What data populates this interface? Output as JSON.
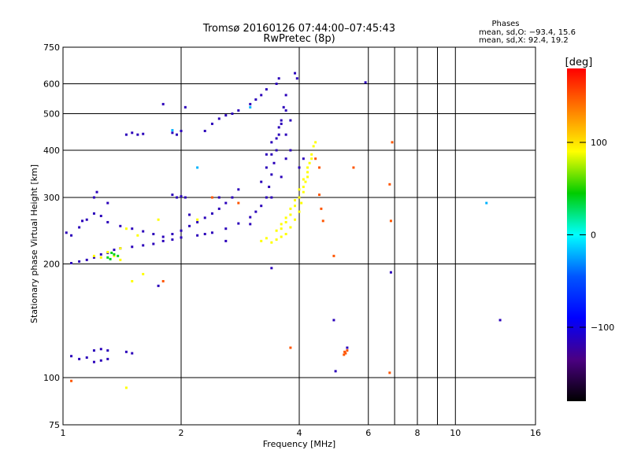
{
  "chart_data": {
    "type": "scatter",
    "title": "Tromsø 20160126 07:44:00–07:45:43",
    "subtitle": "RwPretec (8p)",
    "phase_info": {
      "heading": "Phases",
      "line_o": "mean, sd,O: −93.4, 15.6",
      "line_x": "mean, sd,X:  92.4, 19.2"
    },
    "xlabel": "Frequency [MHz]",
    "ylabel": "Stationary phase Virtual Height [km]",
    "x_scale": "log",
    "y_scale": "log",
    "xlim": [
      1,
      16
    ],
    "ylim": [
      75,
      750
    ],
    "x_ticks": [
      1,
      2,
      4,
      6,
      8,
      10,
      16
    ],
    "x_tick_labels": [
      "1",
      "2",
      "4",
      "6",
      "8",
      "10",
      "16"
    ],
    "x_gridlines": [
      1,
      2,
      4,
      6,
      7,
      8,
      9,
      10,
      16
    ],
    "y_ticks": [
      75,
      100,
      200,
      300,
      400,
      500,
      600,
      750
    ],
    "y_tick_labels": [
      "75",
      "100",
      "200",
      "300",
      "400",
      "500",
      "600",
      "750"
    ],
    "grid": true,
    "colorbar": {
      "label": "[deg]",
      "range": [
        -180,
        180
      ],
      "ticks": [
        100,
        0,
        -100
      ],
      "tick_labels": [
        "100",
        "0",
        "−100"
      ],
      "colors": [
        "#ff0000",
        "#ff7f00",
        "#ffff00",
        "#00cc00",
        "#00ffff",
        "#0055ff",
        "#0000ff",
        "#4b0082",
        "#000000"
      ]
    },
    "series": [
      {
        "phase_deg": -115,
        "points": [
          [
            1.05,
            201
          ],
          [
            1.1,
            203
          ],
          [
            1.15,
            205
          ],
          [
            1.2,
            208
          ],
          [
            1.25,
            212
          ],
          [
            1.3,
            214
          ],
          [
            1.35,
            218
          ],
          [
            1.4,
            220
          ],
          [
            1.5,
            222
          ],
          [
            1.6,
            224
          ],
          [
            1.7,
            226
          ],
          [
            1.8,
            230
          ],
          [
            1.9,
            232
          ],
          [
            2.0,
            235
          ],
          [
            2.2,
            238
          ],
          [
            2.4,
            242
          ],
          [
            2.6,
            248
          ],
          [
            2.8,
            256
          ],
          [
            3.0,
            266
          ],
          [
            3.1,
            275
          ],
          [
            3.2,
            285
          ],
          [
            3.3,
            300
          ],
          [
            3.35,
            320
          ],
          [
            3.4,
            345
          ],
          [
            3.45,
            370
          ],
          [
            3.5,
            400
          ],
          [
            3.55,
            440
          ],
          [
            3.6,
            480
          ],
          [
            3.65,
            520
          ],
          [
            3.7,
            560
          ],
          [
            1.1,
            250
          ],
          [
            1.15,
            262
          ],
          [
            1.2,
            272
          ],
          [
            1.25,
            268
          ],
          [
            1.3,
            258
          ],
          [
            1.4,
            252
          ],
          [
            1.5,
            248
          ],
          [
            1.6,
            244
          ],
          [
            1.7,
            240
          ],
          [
            1.8,
            236
          ],
          [
            1.9,
            240
          ],
          [
            2.0,
            245
          ],
          [
            2.1,
            252
          ],
          [
            2.2,
            258
          ],
          [
            2.3,
            265
          ],
          [
            2.4,
            272
          ],
          [
            2.5,
            280
          ],
          [
            2.6,
            290
          ],
          [
            2.7,
            300
          ],
          [
            2.8,
            315
          ],
          [
            1.05,
            114
          ],
          [
            1.1,
            112
          ],
          [
            1.15,
            113
          ],
          [
            1.2,
            110
          ],
          [
            1.25,
            111
          ],
          [
            1.3,
            112
          ],
          [
            1.2,
            118
          ],
          [
            1.25,
            119
          ],
          [
            1.3,
            118
          ],
          [
            1.45,
            117
          ],
          [
            1.5,
            116
          ],
          [
            1.45,
            440
          ],
          [
            1.5,
            445
          ],
          [
            1.55,
            440
          ],
          [
            1.6,
            442
          ],
          [
            1.9,
            445
          ],
          [
            1.95,
            440
          ],
          [
            2.0,
            450
          ],
          [
            1.9,
            305
          ],
          [
            1.95,
            300
          ],
          [
            2.0,
            302
          ],
          [
            2.05,
            300
          ],
          [
            2.3,
            450
          ],
          [
            2.4,
            470
          ],
          [
            2.5,
            485
          ],
          [
            2.6,
            495
          ],
          [
            2.7,
            500
          ],
          [
            2.8,
            510
          ],
          [
            3.0,
            530
          ],
          [
            3.1,
            545
          ],
          [
            3.2,
            560
          ],
          [
            3.3,
            580
          ],
          [
            3.5,
            600
          ],
          [
            3.55,
            620
          ],
          [
            3.9,
            640
          ],
          [
            3.95,
            620
          ],
          [
            3.2,
            330
          ],
          [
            3.3,
            360
          ],
          [
            3.4,
            390
          ],
          [
            3.5,
            430
          ],
          [
            3.6,
            470
          ],
          [
            3.7,
            510
          ],
          [
            3.3,
            390
          ],
          [
            3.4,
            420
          ],
          [
            3.55,
            460
          ],
          [
            3.7,
            440
          ],
          [
            3.8,
            480
          ],
          [
            1.02,
            242
          ],
          [
            1.05,
            238
          ],
          [
            1.12,
            260
          ],
          [
            1.3,
            290
          ],
          [
            1.2,
            300
          ],
          [
            1.22,
            310
          ],
          [
            2.1,
            270
          ],
          [
            2.3,
            240
          ],
          [
            2.6,
            230
          ],
          [
            3.0,
            255
          ],
          [
            3.4,
            300
          ],
          [
            3.6,
            340
          ],
          [
            3.7,
            380
          ],
          [
            3.8,
            400
          ],
          [
            4.0,
            360
          ],
          [
            4.1,
            380
          ],
          [
            2.05,
            520
          ],
          [
            1.8,
            530
          ],
          [
            2.5,
            300
          ],
          [
            1.75,
            175
          ],
          [
            3.4,
            195
          ],
          [
            6.85,
            190
          ],
          [
            4.9,
            142
          ],
          [
            5.3,
            120
          ],
          [
            4.95,
            104
          ],
          [
            13.0,
            142
          ],
          [
            5.9,
            605
          ]
        ]
      },
      {
        "phase_deg": 90,
        "points": [
          [
            3.4,
            228
          ],
          [
            3.5,
            232
          ],
          [
            3.6,
            236
          ],
          [
            3.7,
            240
          ],
          [
            3.8,
            250
          ],
          [
            3.9,
            262
          ],
          [
            4.0,
            275
          ],
          [
            4.05,
            290
          ],
          [
            4.1,
            310
          ],
          [
            4.15,
            330
          ],
          [
            4.2,
            350
          ],
          [
            4.25,
            370
          ],
          [
            4.3,
            390
          ],
          [
            4.35,
            410
          ],
          [
            4.4,
            420
          ],
          [
            3.2,
            230
          ],
          [
            3.3,
            234
          ],
          [
            3.6,
            248
          ],
          [
            3.7,
            258
          ],
          [
            3.8,
            270
          ],
          [
            3.9,
            285
          ],
          [
            4.0,
            300
          ],
          [
            4.1,
            320
          ],
          [
            4.2,
            340
          ],
          [
            3.5,
            245
          ],
          [
            3.6,
            255
          ],
          [
            3.7,
            265
          ],
          [
            3.8,
            280
          ],
          [
            3.9,
            295
          ],
          [
            4.0,
            315
          ],
          [
            4.1,
            335
          ],
          [
            4.2,
            360
          ],
          [
            4.3,
            380
          ],
          [
            1.3,
            215
          ],
          [
            1.35,
            210
          ],
          [
            1.4,
            220
          ],
          [
            1.45,
            248
          ],
          [
            1.55,
            238
          ],
          [
            1.75,
            262
          ],
          [
            2.2,
            262
          ],
          [
            1.4,
            205
          ],
          [
            1.2,
            210
          ],
          [
            1.25,
            208
          ],
          [
            1.5,
            180
          ],
          [
            1.6,
            188
          ],
          [
            1.45,
            94
          ]
        ]
      },
      {
        "phase_deg": 150,
        "points": [
          [
            4.5,
            305
          ],
          [
            4.55,
            280
          ],
          [
            4.6,
            260
          ],
          [
            4.4,
            380
          ],
          [
            4.5,
            360
          ],
          [
            1.05,
            98
          ],
          [
            3.8,
            120
          ],
          [
            5.3,
            118
          ],
          [
            5.25,
            116
          ],
          [
            5.2,
            115
          ],
          [
            5.22,
            117
          ],
          [
            6.8,
            103
          ],
          [
            6.85,
            260
          ],
          [
            6.8,
            325
          ],
          [
            6.9,
            420
          ],
          [
            4.9,
            210
          ],
          [
            5.5,
            360
          ],
          [
            1.8,
            180
          ],
          [
            2.4,
            300
          ],
          [
            2.8,
            290
          ]
        ]
      },
      {
        "phase_deg": 40,
        "points": [
          [
            1.3,
            208
          ],
          [
            1.32,
            206
          ],
          [
            1.35,
            212
          ],
          [
            1.38,
            210
          ],
          [
            1.33,
            214
          ]
        ]
      },
      {
        "phase_deg": -20,
        "points": [
          [
            12.0,
            290
          ],
          [
            1.9,
            452
          ],
          [
            2.2,
            360
          ],
          [
            3.0,
            520
          ]
        ]
      }
    ]
  }
}
